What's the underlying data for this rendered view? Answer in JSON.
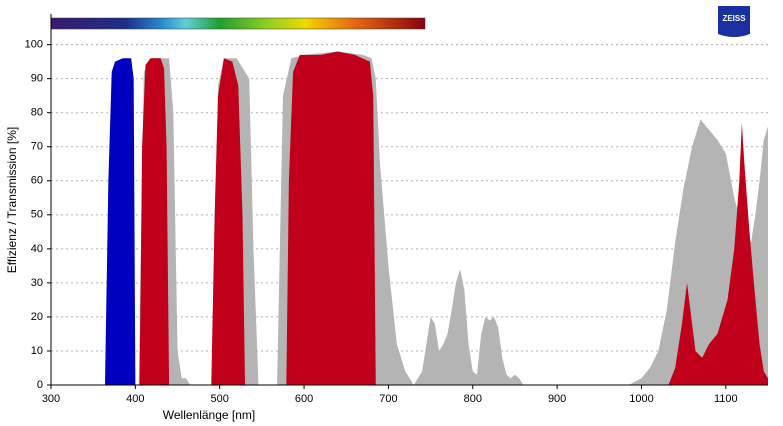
{
  "chart_data": {
    "type": "area",
    "logo": "ZEISS",
    "x_label": "Wellenlänge [nm]",
    "y_label": "Effizienz / Transmission [%]",
    "xlim": [
      300,
      1150
    ],
    "ylim": [
      0,
      109
    ],
    "xticks": [
      300,
      400,
      500,
      600,
      700,
      800,
      900,
      1000,
      1100
    ],
    "yticks": [
      0,
      10,
      20,
      30,
      40,
      50,
      60,
      70,
      80,
      90,
      100
    ],
    "grid": true,
    "series": [
      {
        "color": "#b4b4b4",
        "x": [
          300,
          404,
          410,
          420,
          440,
          445,
          450,
          455,
          460,
          465,
          492,
          498,
          505,
          520,
          535,
          540,
          546,
          568,
          575,
          585,
          600,
          640,
          670,
          680,
          685,
          690,
          700,
          710,
          720,
          730,
          740,
          745,
          750,
          755,
          760,
          765,
          770,
          775,
          780,
          785,
          790,
          795,
          800,
          805,
          810,
          815,
          820,
          825,
          830,
          835,
          840,
          845,
          850,
          855,
          860,
          985,
          1000,
          1010,
          1020,
          1030,
          1040,
          1050,
          1060,
          1070,
          1080,
          1090,
          1100,
          1110,
          1120,
          1130,
          1135,
          1140,
          1145,
          1150
        ],
        "values": [
          0,
          0,
          92,
          96,
          96,
          80,
          10,
          2,
          2,
          0,
          0,
          88,
          96,
          96,
          90,
          40,
          0,
          0,
          85,
          96,
          97,
          98,
          97,
          96,
          90,
          65,
          35,
          12,
          4,
          0,
          4,
          12,
          20,
          18,
          10,
          12,
          15,
          22,
          30,
          34,
          28,
          12,
          4,
          3,
          15,
          20,
          19,
          20,
          17,
          8,
          3,
          2,
          3,
          2,
          0,
          0,
          2,
          5,
          10,
          22,
          42,
          58,
          70,
          78,
          75,
          72,
          68,
          55,
          46,
          42,
          50,
          60,
          72,
          76
        ]
      },
      {
        "color": "#0000c0",
        "x": [
          300,
          364,
          368,
          372,
          376,
          385,
          395,
          398,
          400,
          1150
        ],
        "values": [
          0,
          0,
          60,
          92,
          95,
          96,
          96,
          90,
          0,
          0
        ]
      },
      {
        "color": "#c0001a",
        "x": [
          300,
          405,
          408,
          412,
          418,
          430,
          434,
          437,
          440,
          490,
          494,
          498,
          505,
          515,
          522,
          527,
          530,
          579,
          582,
          587,
          595,
          620,
          640,
          660,
          678,
          682,
          685,
          1032,
          1040,
          1048,
          1054,
          1058,
          1064,
          1072,
          1080,
          1090,
          1102,
          1110,
          1116,
          1119,
          1122,
          1128,
          1134,
          1140,
          1145,
          1150
        ],
        "values": [
          0,
          0,
          70,
          94,
          96,
          96,
          93,
          70,
          0,
          0,
          50,
          85,
          96,
          95,
          88,
          50,
          0,
          0,
          60,
          92,
          97,
          97,
          98,
          97,
          95,
          85,
          0,
          0,
          5,
          18,
          30,
          22,
          10,
          8,
          12,
          15,
          25,
          40,
          60,
          77,
          65,
          45,
          28,
          12,
          4,
          2
        ]
      }
    ]
  }
}
